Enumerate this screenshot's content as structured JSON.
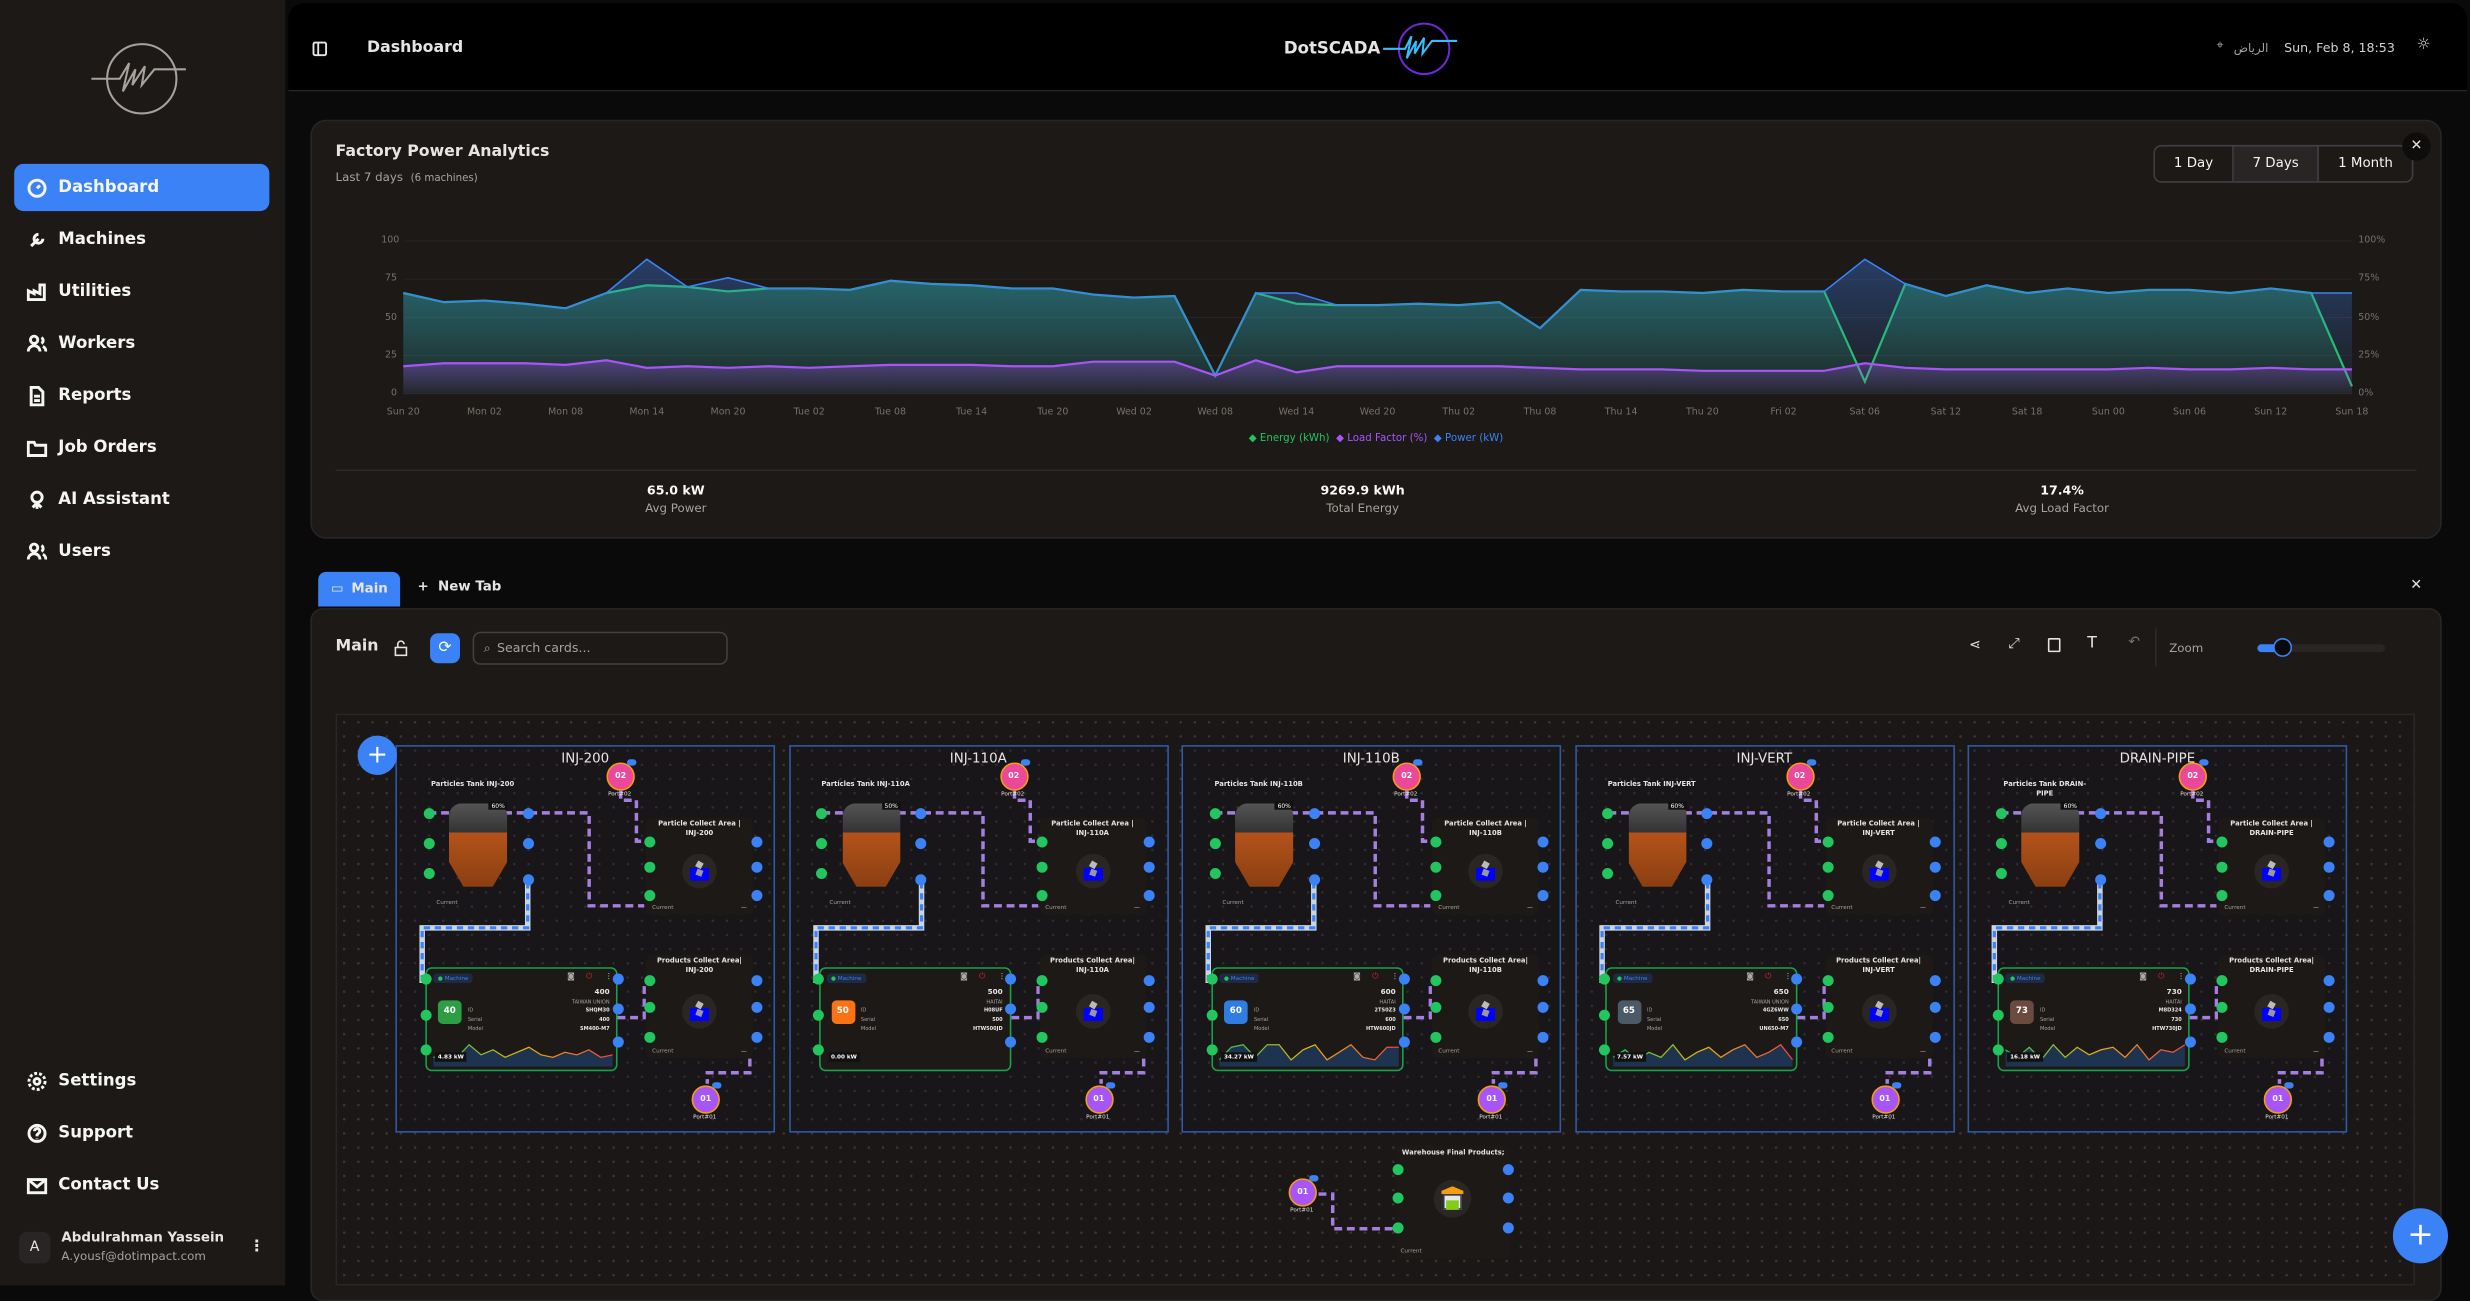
{
  "sidebar": {
    "items": [
      {
        "label": "Dashboard",
        "icon": "dashboard-icon",
        "active": true
      },
      {
        "label": "Machines",
        "icon": "wrench-icon"
      },
      {
        "label": "Utilities",
        "icon": "factory-icon"
      },
      {
        "label": "Workers",
        "icon": "users-icon"
      },
      {
        "label": "Reports",
        "icon": "file-icon"
      },
      {
        "label": "Job Orders",
        "icon": "folder-icon"
      },
      {
        "label": "AI Assistant",
        "icon": "bot-icon"
      },
      {
        "label": "Users",
        "icon": "users-icon"
      }
    ],
    "bottom": [
      {
        "label": "Settings",
        "icon": "gear-icon"
      },
      {
        "label": "Support",
        "icon": "help-icon"
      },
      {
        "label": "Contact Us",
        "icon": "mail-icon"
      }
    ],
    "user": {
      "initial": "A",
      "name": "Abdulrahman Yassein",
      "email": "A.yousf@dotimpact.com"
    }
  },
  "header": {
    "title": "Dashboard",
    "brand": "DotSCADA",
    "location": "الرياض",
    "datetime": "Sun, Feb 8, 18:53"
  },
  "analytics": {
    "title": "Factory Power Analytics",
    "subtitle": "Last 7 days",
    "machines": "(6 machines)",
    "ranges": [
      "1 Day",
      "7 Days",
      "1 Month"
    ],
    "active_range": "7 Days",
    "stats": [
      {
        "value": "65.0 kW",
        "label": "Avg Power"
      },
      {
        "value": "9269.9 kWh",
        "label": "Total Energy"
      },
      {
        "value": "17.4%",
        "label": "Avg Load Factor"
      }
    ]
  },
  "chart_data": {
    "type": "area",
    "title": "Factory Power Analytics",
    "x_ticks": [
      "Sun 20",
      "Mon 02",
      "Mon 08",
      "Mon 14",
      "Mon 20",
      "Tue 02",
      "Tue 08",
      "Tue 14",
      "Tue 20",
      "Wed 02",
      "Wed 08",
      "Wed 14",
      "Wed 20",
      "Thu 02",
      "Thu 08",
      "Thu 14",
      "Thu 20",
      "Fri 02",
      "Sat 06",
      "Sat 12",
      "Sat 18",
      "Sun 00",
      "Sun 06",
      "Sun 12",
      "Sun 18"
    ],
    "y_left_ticks": [
      "0",
      "25",
      "50",
      "75",
      "100"
    ],
    "y_right_ticks": [
      "0%",
      "25%",
      "50%",
      "75%",
      "100%"
    ],
    "ylim": [
      0,
      100
    ],
    "legend": "bottom-center",
    "series": [
      {
        "name": "Energy (kWh)",
        "color": "#22c55e",
        "values": [
          66,
          60,
          61,
          59,
          56,
          66,
          71,
          70,
          67,
          69,
          69,
          68,
          74,
          72,
          71,
          69,
          69,
          65,
          63,
          64,
          12,
          66,
          59,
          58,
          58,
          59,
          58,
          60,
          43,
          68,
          67,
          67,
          66,
          68,
          67,
          67,
          8,
          72,
          64,
          71,
          66,
          69,
          66,
          68,
          68,
          66,
          69,
          66,
          5
        ]
      },
      {
        "name": "Load Factor (%)",
        "color": "#a855f7",
        "values": [
          18,
          20,
          20,
          20,
          19,
          22,
          17,
          18,
          17,
          18,
          17,
          18,
          19,
          19,
          19,
          18,
          18,
          21,
          21,
          21,
          12,
          22,
          14,
          18,
          18,
          18,
          18,
          18,
          17,
          16,
          16,
          16,
          15,
          15,
          15,
          15,
          20,
          17,
          16,
          16,
          16,
          16,
          16,
          17,
          16,
          16,
          17,
          16,
          16
        ]
      },
      {
        "name": "Power (kW)",
        "color": "#3b82f6",
        "values": [
          66,
          60,
          61,
          59,
          56,
          66,
          88,
          70,
          76,
          69,
          69,
          68,
          74,
          72,
          71,
          69,
          69,
          65,
          63,
          64,
          12,
          66,
          66,
          58,
          58,
          59,
          58,
          60,
          43,
          68,
          67,
          67,
          66,
          68,
          67,
          67,
          88,
          72,
          64,
          71,
          66,
          69,
          66,
          68,
          68,
          66,
          69,
          66,
          66
        ]
      }
    ]
  },
  "tabs": {
    "items": [
      "Main",
      "New Tab"
    ]
  },
  "canvas": {
    "title": "Main",
    "search_placeholder": "Search cards...",
    "zoom_label": "Zoom",
    "zoom_value": 0.2,
    "groups": [
      {
        "name": "INJ-200",
        "tank": "Particles Tank INJ-200",
        "level": "60%",
        "badge": "40",
        "badge_color": "#2e9e45",
        "cap": "400",
        "brand": "TAIWAN UNION",
        "id": "SHQM30",
        "serial": "400",
        "model": "SM400-M7",
        "power": "4.83 kW",
        "spark": [
          3,
          4,
          3,
          8,
          4,
          6,
          3,
          5,
          7,
          4,
          3,
          5,
          4,
          6,
          3,
          4
        ]
      },
      {
        "name": "INJ-110A",
        "tank": "Particles Tank INJ-110A",
        "level": "50%",
        "badge": "50",
        "badge_color": "#f97316",
        "cap": "500",
        "brand": "HAITAI",
        "id": "H08UF",
        "serial": "500",
        "model": "HTW500JD",
        "power": "0.00 kW",
        "spark": []
      },
      {
        "name": "INJ-110B",
        "tank": "Particles Tank INJ-110B",
        "level": "60%",
        "badge": "60",
        "badge_color": "#2f7de0",
        "cap": "600",
        "brand": "HAITAI",
        "id": "2TS0Z3",
        "serial": "600",
        "model": "HTW600JD",
        "power": "34.27 kW",
        "spark": [
          2,
          7,
          8,
          3,
          8,
          8,
          2,
          6,
          8,
          2,
          5,
          8,
          3,
          2,
          7,
          7
        ]
      },
      {
        "name": "INJ-VERT",
        "tank": "Particles Tank INJ-VERT",
        "level": "60%",
        "badge": "65",
        "badge_color": "#4b5a66",
        "cap": "650",
        "brand": "TAIWAN UNION",
        "id": "4GZ6WW",
        "serial": "650",
        "model": "UN650-M7",
        "power": "7.57 kW",
        "spark": [
          3,
          6,
          2,
          5,
          3,
          8,
          2,
          5,
          7,
          3,
          6,
          8,
          3,
          5,
          8,
          2
        ]
      },
      {
        "name": "DRAIN-PIPE",
        "tank": "Particles Tank DRAIN-PIPE",
        "level": "60%",
        "badge": "73",
        "badge_color": "#6b4a3f",
        "cap": "730",
        "brand": "HAITAI",
        "id": "M8D324",
        "serial": "730",
        "model": "HTW730JD",
        "power": "16.18 kW",
        "spark": [
          6,
          3,
          7,
          2,
          8,
          3,
          7,
          4,
          6,
          7,
          3,
          8,
          2,
          6,
          5,
          8
        ]
      }
    ],
    "labels": {
      "particle_area": "Particle Collect Area |",
      "products_area": "Products Collect Area|",
      "current": "Current",
      "dash": "—",
      "machine": "Machine",
      "id": "ID",
      "serial": "Serial",
      "model": "Model",
      "port1": "01",
      "port2": "02",
      "port1_name": "Port#01",
      "port2_name": "Port#02"
    },
    "warehouse": {
      "title": "Warehouse Final Products;",
      "port": "01",
      "port_name": "Port#01",
      "current": "Current"
    }
  }
}
